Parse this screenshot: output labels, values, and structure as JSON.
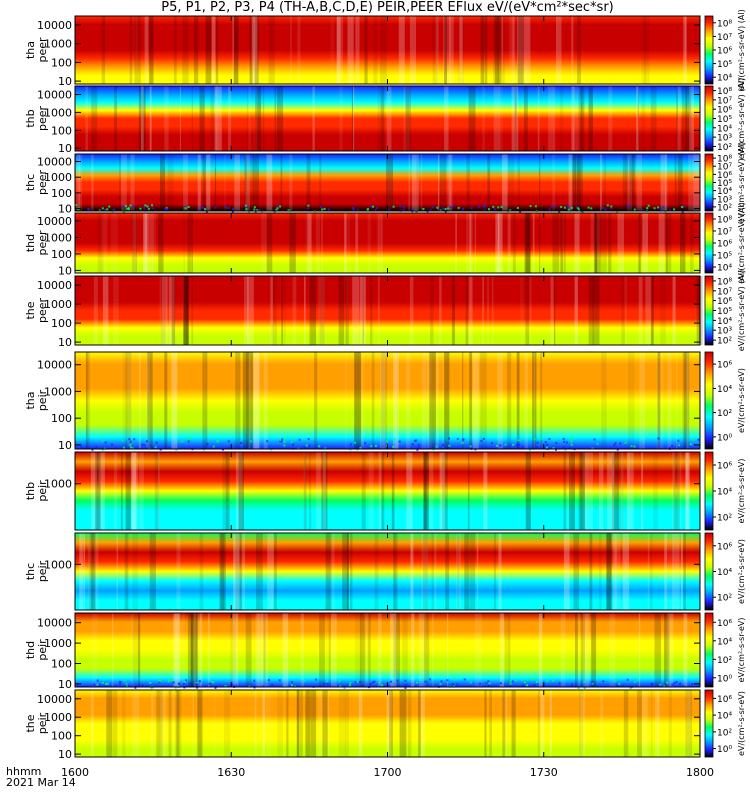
{
  "title": "P5, P1, P2, P3, P4 (TH-A,B,C,D,E) PEIR,PEER EFlux eV/(eV*cm²*sec*sr)",
  "footer": {
    "time_label": "hhmm",
    "date_label": "2021 Mar 14"
  },
  "colorbar": {
    "colors": [
      "#000000",
      "#1f1fff",
      "#00a0ff",
      "#00ffff",
      "#00ff60",
      "#c8ff00",
      "#ffff00",
      "#ffa000",
      "#ff2a00",
      "#c80000"
    ],
    "unit_electron": "eV/(cm²-s-sr-eV) (Al)",
    "unit_ion": "eV/(cm²-s-sr-eV)"
  },
  "chart_data": {
    "type": "heatmap",
    "x_axis": {
      "range": [
        "1600",
        "1800"
      ],
      "ticks": [
        "1600",
        "1630",
        "1700",
        "1730",
        "1800"
      ],
      "scale": "time hhmm"
    },
    "y_scale": "log",
    "panels": [
      {
        "label": "tha",
        "sublabel": "peer",
        "yticks": [
          "10",
          "100",
          "1000",
          "10000"
        ],
        "ylim": [
          7,
          30000
        ],
        "cbar_ticks": [
          "10⁴",
          "10⁵",
          "10⁶",
          "10⁷",
          "10⁸"
        ],
        "cbar_range": [
          4,
          8
        ],
        "unit_key": "unit_electron",
        "profile": [
          6,
          6,
          7,
          8,
          8.5,
          8.8,
          8.8,
          8.6,
          8.3
        ]
      },
      {
        "label": "thb",
        "sublabel": "peer",
        "yticks": [
          "10",
          "100",
          "1000",
          "10000"
        ],
        "ylim": [
          7,
          30000
        ],
        "cbar_ticks": [
          "10²",
          "10³",
          "10⁴",
          "10⁵",
          "10⁶",
          "10⁷",
          "10⁸"
        ],
        "cbar_range": [
          2,
          8
        ],
        "unit_key": "unit_electron",
        "profile": [
          9,
          9,
          8.5,
          8.2,
          7.5,
          6,
          3,
          2,
          1
        ]
      },
      {
        "label": "thc",
        "sublabel": "peer",
        "yticks": [
          "10",
          "100",
          "1000",
          "10000"
        ],
        "ylim": [
          7,
          30000
        ],
        "cbar_ticks": [
          "10²",
          "10³",
          "10⁴",
          "10⁵",
          "10⁶",
          "10⁷",
          "10⁸"
        ],
        "cbar_range": [
          2,
          8
        ],
        "unit_key": "unit_electron",
        "profile": [
          0,
          9,
          8.7,
          8.4,
          7.8,
          6.5,
          3,
          2,
          1
        ]
      },
      {
        "label": "thd",
        "sublabel": "peer",
        "yticks": [
          "10",
          "100",
          "1000",
          "10000"
        ],
        "ylim": [
          7,
          30000
        ],
        "cbar_ticks": [
          "10⁴",
          "10⁵",
          "10⁶",
          "10⁷",
          "10⁸"
        ],
        "cbar_range": [
          4,
          8
        ],
        "unit_key": "unit_electron",
        "profile": [
          5,
          5,
          6,
          7.5,
          8.5,
          8.8,
          8.8,
          8.5,
          8.2
        ]
      },
      {
        "label": "the",
        "sublabel": "peer",
        "yticks": [
          "10",
          "100",
          "1000",
          "10000"
        ],
        "ylim": [
          7,
          30000
        ],
        "cbar_ticks": [
          "10²",
          "10³",
          "10⁴",
          "10⁵",
          "10⁶",
          "10⁷",
          "10⁸"
        ],
        "cbar_range": [
          2,
          8
        ],
        "unit_key": "unit_electron",
        "profile": [
          5,
          5,
          6,
          7.5,
          8.3,
          8.8,
          9,
          9,
          9
        ]
      },
      {
        "label": "tha",
        "sublabel": "peir",
        "yticks": [
          "10",
          "100",
          "1000",
          "10000"
        ],
        "ylim": [
          7,
          30000
        ],
        "cbar_ticks": [
          "10⁰",
          "10²",
          "10⁴",
          "10⁶"
        ],
        "cbar_range": [
          0,
          7
        ],
        "unit_key": "unit_ion",
        "profile": [
          1,
          3,
          4.5,
          5.2,
          6,
          6.5,
          7,
          6.8,
          6.4
        ]
      },
      {
        "label": "thb",
        "sublabel": "peir",
        "yticks": [
          "1000"
        ],
        "ylim": [
          7,
          30000
        ],
        "cbar_ticks": [
          "10²",
          "10⁴",
          "10⁶"
        ],
        "cbar_range": [
          1,
          7
        ],
        "unit_key": "unit_ion",
        "profile": [
          3,
          3,
          2.5,
          3.5,
          6,
          8,
          8.7,
          7.2,
          9
        ]
      },
      {
        "label": "thc",
        "sublabel": "peir",
        "yticks": [
          "1000"
        ],
        "ylim": [
          7,
          30000
        ],
        "cbar_ticks": [
          "10²",
          "10⁴",
          "10⁶"
        ],
        "cbar_range": [
          1,
          7
        ],
        "unit_key": "unit_ion",
        "profile": [
          2.5,
          2.5,
          2,
          3,
          6,
          8,
          8.8,
          6.5,
          4
        ]
      },
      {
        "label": "thd",
        "sublabel": "peir",
        "yticks": [
          "10",
          "100",
          "1000",
          "10000"
        ],
        "ylim": [
          7,
          30000
        ],
        "cbar_ticks": [
          "10⁰",
          "10²",
          "10⁴",
          "10⁶"
        ],
        "cbar_range": [
          0,
          7
        ],
        "unit_key": "unit_ion",
        "profile": [
          1,
          3,
          4.5,
          5,
          5.5,
          6,
          6.5,
          6.6,
          9
        ]
      },
      {
        "label": "the",
        "sublabel": "peir",
        "yticks": [
          "10",
          "100",
          "1000",
          "10000"
        ],
        "ylim": [
          7,
          30000
        ],
        "cbar_ticks": [
          "10⁰",
          "10²",
          "10⁴",
          "10⁶"
        ],
        "cbar_range": [
          0,
          7
        ],
        "unit_key": "unit_ion",
        "profile": [
          4.5,
          5,
          5.5,
          6,
          6.3,
          6.5,
          6.6,
          6.5,
          6.2
        ]
      }
    ]
  }
}
